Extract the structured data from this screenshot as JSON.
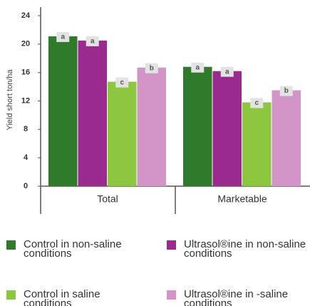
{
  "chart_data": {
    "type": "bar",
    "ylabel": "Yield short ton/ha",
    "categories": [
      "Total",
      "Marketable"
    ],
    "series": [
      {
        "name": "Control in non-saline conditions",
        "color": "#2f7a2b",
        "values": [
          21.1,
          16.8
        ],
        "letters": [
          "a",
          "a"
        ]
      },
      {
        "name": "Ultrasol®ine in non-saline conditions",
        "color": "#9b2a8e",
        "values": [
          20.5,
          16.2
        ],
        "letters": [
          "a",
          "a"
        ]
      },
      {
        "name": "Control in saline conditions",
        "color": "#8dc63f",
        "values": [
          14.7,
          11.8
        ],
        "letters": [
          "c",
          "c"
        ]
      },
      {
        "name": "Ultrasol®ine in -saline conditions",
        "color": "#d395c8",
        "values": [
          16.7,
          13.5
        ],
        "letters": [
          "b",
          "b"
        ]
      }
    ],
    "ylim": [
      0,
      24
    ],
    "yticks": [
      0,
      4,
      8,
      12,
      16,
      20,
      24
    ]
  }
}
